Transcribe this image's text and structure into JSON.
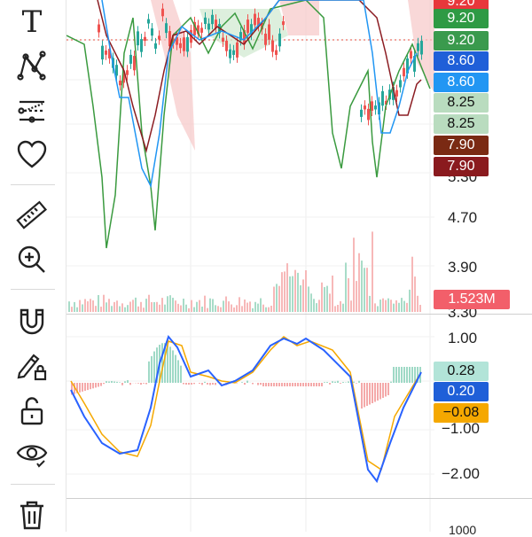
{
  "toolbar": {
    "tools": [
      {
        "name": "text-tool",
        "icon": "text-icon"
      },
      {
        "name": "pattern-tool",
        "icon": "pattern-icon"
      },
      {
        "name": "forecast-tool",
        "icon": "forecast-icon"
      },
      {
        "name": "favorites-tool",
        "icon": "heart-icon"
      },
      {
        "name": "measure-tool",
        "icon": "ruler-icon"
      },
      {
        "name": "zoom-tool",
        "icon": "zoom-in-icon"
      },
      {
        "name": "magnet-tool",
        "icon": "magnet-icon"
      },
      {
        "name": "lock-drawings-tool",
        "icon": "pencil-lock-icon"
      },
      {
        "name": "lock-all-tool",
        "icon": "unlock-icon"
      },
      {
        "name": "hide-tool",
        "icon": "eye-icon"
      },
      {
        "name": "remove-tool",
        "icon": "trash-icon"
      }
    ],
    "text_glyph": "T"
  },
  "price_axis": {
    "labels": [
      "5.30",
      "4.70",
      "3.90",
      "3.30"
    ],
    "badges": [
      {
        "text": "9.20",
        "bg": "#e8373b",
        "fg": "#ffffff"
      },
      {
        "text": "9.20",
        "bg": "#2e9a44",
        "fg": "#ffffff"
      },
      {
        "text": "9.20",
        "bg": "#3a9a4d",
        "fg": "#ffffff"
      },
      {
        "text": "8.60",
        "bg": "#1f5fd8",
        "fg": "#ffffff"
      },
      {
        "text": "8.60",
        "bg": "#2296f3",
        "fg": "#ffffff"
      },
      {
        "text": "8.25",
        "bg": "#b9dcbf",
        "fg": "#111111"
      },
      {
        "text": "8.25",
        "bg": "#b9dcbf",
        "fg": "#111111"
      },
      {
        "text": "7.90",
        "bg": "#7a2a13",
        "fg": "#ffffff"
      },
      {
        "text": "7.90",
        "bg": "#8a1a1e",
        "fg": "#ffffff"
      }
    ],
    "volume_badge": {
      "text": "1.523M",
      "bg": "#f25f6a",
      "fg": "#ffffff"
    }
  },
  "macd_axis": {
    "labels": [
      "1.00",
      "−1.00",
      "−2.00"
    ],
    "badges": [
      {
        "text": "0.28",
        "bg": "#b2e4d8",
        "fg": "#111111"
      },
      {
        "text": "0.20",
        "bg": "#1f5fd8",
        "fg": "#ffffff"
      },
      {
        "text": "−0.08",
        "bg": "#f5a800",
        "fg": "#111111"
      }
    ]
  },
  "bottom_axis": {
    "partial_label": "1000"
  },
  "colors": {
    "up": "#26a69a",
    "down": "#ef5350",
    "macd_line": "#2962ff",
    "signal_line": "#f5a800",
    "green_line": "#3a9a3f",
    "maroon_line": "#8b1c22",
    "blue_line": "#2196f3",
    "cloud_red": "#f7c7c7",
    "cloud_green": "#cfe8cf"
  }
}
